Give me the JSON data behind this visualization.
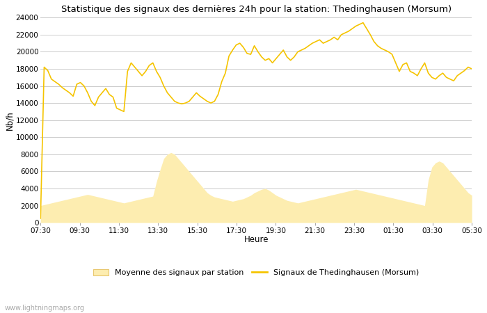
{
  "title": "Statistique des signaux des dernières 24h pour la station: Thedinghausen (Morsum)",
  "xlabel": "Heure",
  "ylabel": "Nb/h",
  "watermark": "www.lightningmaps.org",
  "ylim": [
    0,
    24000
  ],
  "yticks": [
    0,
    2000,
    4000,
    6000,
    8000,
    10000,
    12000,
    14000,
    16000,
    18000,
    20000,
    22000,
    24000
  ],
  "xtick_labels": [
    "07:30",
    "09:30",
    "11:30",
    "13:30",
    "15:30",
    "17:30",
    "19:30",
    "21:30",
    "23:30",
    "01:30",
    "03:30",
    "05:30"
  ],
  "line_color": "#F5C400",
  "fill_color": "#FDEDB0",
  "fill_edge_color": "#E8C870",
  "background_color": "#ffffff",
  "grid_color": "#cccccc",
  "legend_label_fill": "Moyenne des signaux par station",
  "legend_label_line": "Signaux de Thedinghausen (Morsum)",
  "line_y": [
    500,
    18200,
    17800,
    16800,
    16500,
    16200,
    15800,
    15500,
    15200,
    14800,
    16200,
    16400,
    16000,
    15200,
    14200,
    13700,
    14700,
    15200,
    15700,
    15000,
    14700,
    13400,
    13200,
    13000,
    17700,
    18700,
    18200,
    17700,
    17200,
    17700,
    18400,
    18700,
    17700,
    17000,
    16000,
    15200,
    14700,
    14200,
    14000,
    13900,
    14000,
    14200,
    14700,
    15200,
    14800,
    14500,
    14200,
    14000,
    14200,
    15000,
    16500,
    17500,
    19500,
    20200,
    20800,
    21000,
    20500,
    19800,
    19700,
    20700,
    20000,
    19400,
    19000,
    19200,
    18700,
    19200,
    19700,
    20200,
    19400,
    19000,
    19400,
    20000,
    20200,
    20400,
    20700,
    21000,
    21200,
    21400,
    21000,
    21200,
    21400,
    21700,
    21400,
    22000,
    22200,
    22400,
    22700,
    23000,
    23200,
    23400,
    22700,
    22000,
    21200,
    20700,
    20400,
    20200,
    20000,
    19700,
    18700,
    17700,
    18500,
    18700,
    17700,
    17500,
    17200,
    18000,
    18700,
    17500,
    17000,
    16800,
    17200,
    17500,
    17000,
    16800,
    16600,
    17200,
    17500,
    17800,
    18200,
    18000
  ],
  "fill_y": [
    2000,
    2100,
    2200,
    2300,
    2400,
    2500,
    2600,
    2700,
    2800,
    2900,
    3000,
    3100,
    3200,
    3300,
    3200,
    3100,
    3000,
    2900,
    2800,
    2700,
    2600,
    2500,
    2400,
    2300,
    2400,
    2500,
    2600,
    2700,
    2800,
    2900,
    3000,
    3100,
    4800,
    6200,
    7500,
    8000,
    8200,
    8000,
    7500,
    7000,
    6500,
    6000,
    5500,
    5000,
    4500,
    4000,
    3500,
    3200,
    3000,
    2900,
    2800,
    2700,
    2600,
    2500,
    2600,
    2700,
    2800,
    3000,
    3200,
    3500,
    3700,
    3900,
    4000,
    3800,
    3500,
    3200,
    3000,
    2800,
    2600,
    2500,
    2400,
    2300,
    2400,
    2500,
    2600,
    2700,
    2800,
    2900,
    3000,
    3100,
    3200,
    3300,
    3400,
    3500,
    3600,
    3700,
    3800,
    3900,
    3800,
    3700,
    3600,
    3500,
    3400,
    3300,
    3200,
    3100,
    3000,
    2900,
    2800,
    2700,
    2600,
    2500,
    2400,
    2300,
    2200,
    2100,
    2000,
    5000,
    6500,
    7000,
    7200,
    7000,
    6500,
    6000,
    5500,
    5000,
    4500,
    4000,
    3500,
    3200
  ]
}
